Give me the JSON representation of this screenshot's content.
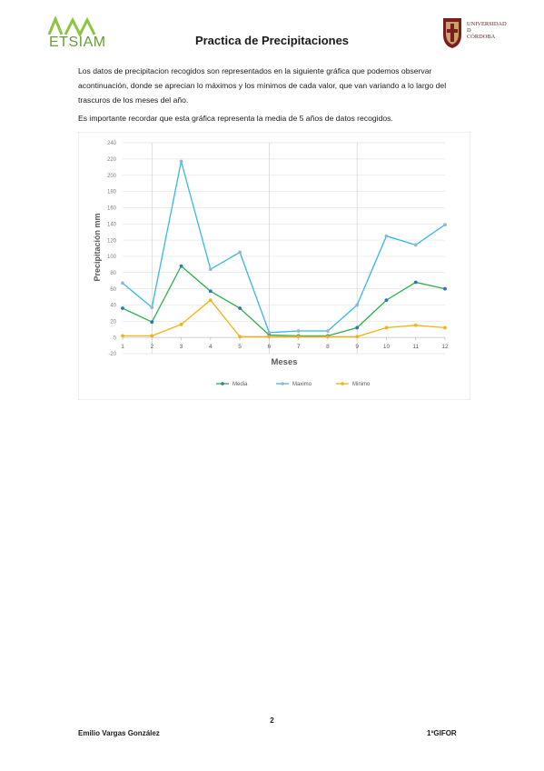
{
  "header": {
    "logo_left_text": "ETSIAM",
    "title": "Practica de Precipitaciones",
    "logo_right_text": [
      "UNIVERSIDAD",
      "D",
      "CÓRDOBA"
    ]
  },
  "body": {
    "paragraph_1": "Los datos de precipitacion recogidos son representados en la siguiente gráfica que podemos observar acontinuación, donde se aprecian lo máximos y los mínimos de cada valor, que van variando a lo largo del trascuros de los meses del año.",
    "paragraph_2": "Es importante recordar que esta gráfica representa la media de 5 años de datos recogidos."
  },
  "chart_data": {
    "type": "line",
    "title": "",
    "xlabel": "Meses",
    "ylabel": "Precipitación mm",
    "categories": [
      "1",
      "2",
      "3",
      "4",
      "5",
      "6",
      "7",
      "8",
      "9",
      "10",
      "11",
      "12"
    ],
    "yticks": [
      "-20",
      "0",
      "20",
      "40",
      "60",
      "80",
      "100",
      "120",
      "140",
      "160",
      "180",
      "200",
      "220",
      "240"
    ],
    "ylim": [
      -20,
      240
    ],
    "grid": true,
    "legend_position": "bottom",
    "series": [
      {
        "name": "Media",
        "color": "#2ab04a",
        "marker_color": "#2e75b6",
        "values": [
          36,
          19,
          88,
          57,
          36,
          3,
          2,
          2,
          12,
          46,
          68,
          60
        ]
      },
      {
        "name": "Maximo",
        "color": "#33b8e8",
        "marker_color": "#9fb3c8",
        "values": [
          67,
          37,
          217,
          84,
          105,
          6,
          8,
          8,
          40,
          125,
          114,
          139
        ]
      },
      {
        "name": "Minimo",
        "color": "#f0b418",
        "marker_color": "#f0b418",
        "values": [
          2,
          2,
          16,
          46,
          1,
          1,
          1,
          1,
          1,
          12,
          15,
          12
        ]
      }
    ]
  },
  "footer": {
    "page_number": "2",
    "author": "Emilio Vargas González",
    "course": "1ºGIFOR"
  }
}
